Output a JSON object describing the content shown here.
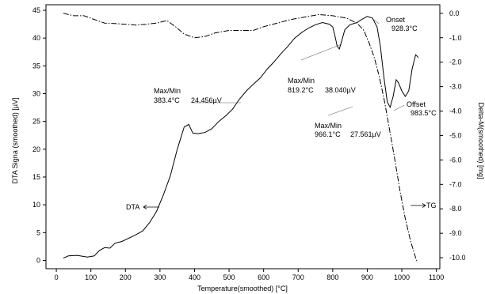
{
  "chart_data": {
    "type": "line",
    "xlabel": "Temperature(smoothed)  [°C]",
    "ylabel_left": "DTA Signa (smoothed)  [µV]",
    "ylabel_right": "Delta-M(smoothed)  [mg]",
    "xlim": [
      -30,
      1110
    ],
    "ylim_left": [
      -1.5,
      46
    ],
    "ylim_right": [
      -10.45,
      0.35
    ],
    "x_ticks": [
      0,
      100,
      200,
      300,
      400,
      500,
      600,
      700,
      800,
      900,
      1000,
      1100
    ],
    "y_left_ticks": [
      0,
      5,
      10,
      15,
      20,
      25,
      30,
      35,
      40,
      45
    ],
    "y_right_ticks": [
      "0.0",
      "-1.0",
      "-2.0",
      "-3.0",
      "-4.0",
      "-5.0",
      "-6.0",
      "-7.0",
      "-8.0",
      "-9.0",
      "-10.0"
    ],
    "series": [
      {
        "name": "DTA",
        "axis": "left",
        "points": [
          [
            20,
            0.4
          ],
          [
            35,
            0.8
          ],
          [
            60,
            0.9
          ],
          [
            90,
            0.6
          ],
          [
            110,
            0.8
          ],
          [
            125,
            1.8
          ],
          [
            140,
            2.3
          ],
          [
            155,
            2.2
          ],
          [
            170,
            3.1
          ],
          [
            190,
            3.4
          ],
          [
            210,
            4.0
          ],
          [
            230,
            4.6
          ],
          [
            250,
            5.3
          ],
          [
            270,
            6.8
          ],
          [
            290,
            8.8
          ],
          [
            310,
            11.8
          ],
          [
            330,
            15.2
          ],
          [
            350,
            20.0
          ],
          [
            370,
            24.0
          ],
          [
            383.4,
            24.456
          ],
          [
            395,
            22.9
          ],
          [
            410,
            22.8
          ],
          [
            430,
            23.0
          ],
          [
            450,
            23.7
          ],
          [
            470,
            25.0
          ],
          [
            490,
            26.0
          ],
          [
            510,
            27.2
          ],
          [
            530,
            29.0
          ],
          [
            550,
            30.5
          ],
          [
            570,
            31.7
          ],
          [
            590,
            32.8
          ],
          [
            610,
            34.4
          ],
          [
            630,
            35.7
          ],
          [
            650,
            37.2
          ],
          [
            670,
            38.5
          ],
          [
            690,
            40.0
          ],
          [
            710,
            41.0
          ],
          [
            730,
            41.8
          ],
          [
            750,
            42.4
          ],
          [
            770,
            42.8
          ],
          [
            790,
            42.5
          ],
          [
            800,
            42.0
          ],
          [
            808,
            40.0
          ],
          [
            813,
            38.5
          ],
          [
            819.2,
            38.04
          ],
          [
            826,
            39.5
          ],
          [
            835,
            41.5
          ],
          [
            850,
            42.4
          ],
          [
            870,
            42.8
          ],
          [
            885,
            43.4
          ],
          [
            900,
            43.9
          ],
          [
            915,
            43.6
          ],
          [
            928.3,
            42.0
          ],
          [
            938,
            38.5
          ],
          [
            948,
            33.0
          ],
          [
            958,
            28.5
          ],
          [
            966.1,
            27.561
          ],
          [
            975,
            29.5
          ],
          [
            983.5,
            32.5
          ],
          [
            990,
            32.0
          ],
          [
            1000,
            30.5
          ],
          [
            1010,
            29.5
          ],
          [
            1020,
            30.5
          ],
          [
            1030,
            34.5
          ],
          [
            1040,
            37.0
          ],
          [
            1048,
            36.5
          ]
        ]
      },
      {
        "name": "TG",
        "axis": "right",
        "points": [
          [
            20,
            0.0
          ],
          [
            50,
            -0.1
          ],
          [
            80,
            -0.1
          ],
          [
            110,
            -0.25
          ],
          [
            140,
            -0.4
          ],
          [
            170,
            -0.42
          ],
          [
            200,
            -0.45
          ],
          [
            230,
            -0.48
          ],
          [
            260,
            -0.45
          ],
          [
            290,
            -0.4
          ],
          [
            320,
            -0.3
          ],
          [
            345,
            -0.55
          ],
          [
            370,
            -0.85
          ],
          [
            400,
            -1.0
          ],
          [
            430,
            -0.95
          ],
          [
            460,
            -0.8
          ],
          [
            500,
            -0.7
          ],
          [
            540,
            -0.7
          ],
          [
            570,
            -0.7
          ],
          [
            600,
            -0.55
          ],
          [
            640,
            -0.4
          ],
          [
            680,
            -0.25
          ],
          [
            720,
            -0.15
          ],
          [
            760,
            -0.05
          ],
          [
            800,
            -0.1
          ],
          [
            840,
            -0.2
          ],
          [
            870,
            -0.4
          ],
          [
            890,
            -0.7
          ],
          [
            905,
            -1.2
          ],
          [
            920,
            -1.8
          ],
          [
            935,
            -2.6
          ],
          [
            950,
            -3.6
          ],
          [
            965,
            -4.8
          ],
          [
            980,
            -6.0
          ],
          [
            995,
            -7.3
          ],
          [
            1010,
            -8.4
          ],
          [
            1025,
            -9.3
          ],
          [
            1040,
            -10.0
          ],
          [
            1045,
            -10.2
          ]
        ]
      }
    ],
    "annotations": {
      "peak1": {
        "title": "Max/Min",
        "temp": "383.4°C",
        "val": "24.456µV"
      },
      "peak2": {
        "title": "Max/Min",
        "temp": "819.2°C",
        "val": "38.040µV"
      },
      "peak3": {
        "title": "Max/Min",
        "temp": "966.1°C",
        "val": "27.561µV"
      },
      "onset": {
        "title": "Onset",
        "temp": "928.3°C"
      },
      "offset": {
        "title": "Offset",
        "temp": "983.5°C"
      },
      "dta_label": "DTA",
      "tg_label": "TG"
    },
    "legend": "none",
    "grid": false
  }
}
